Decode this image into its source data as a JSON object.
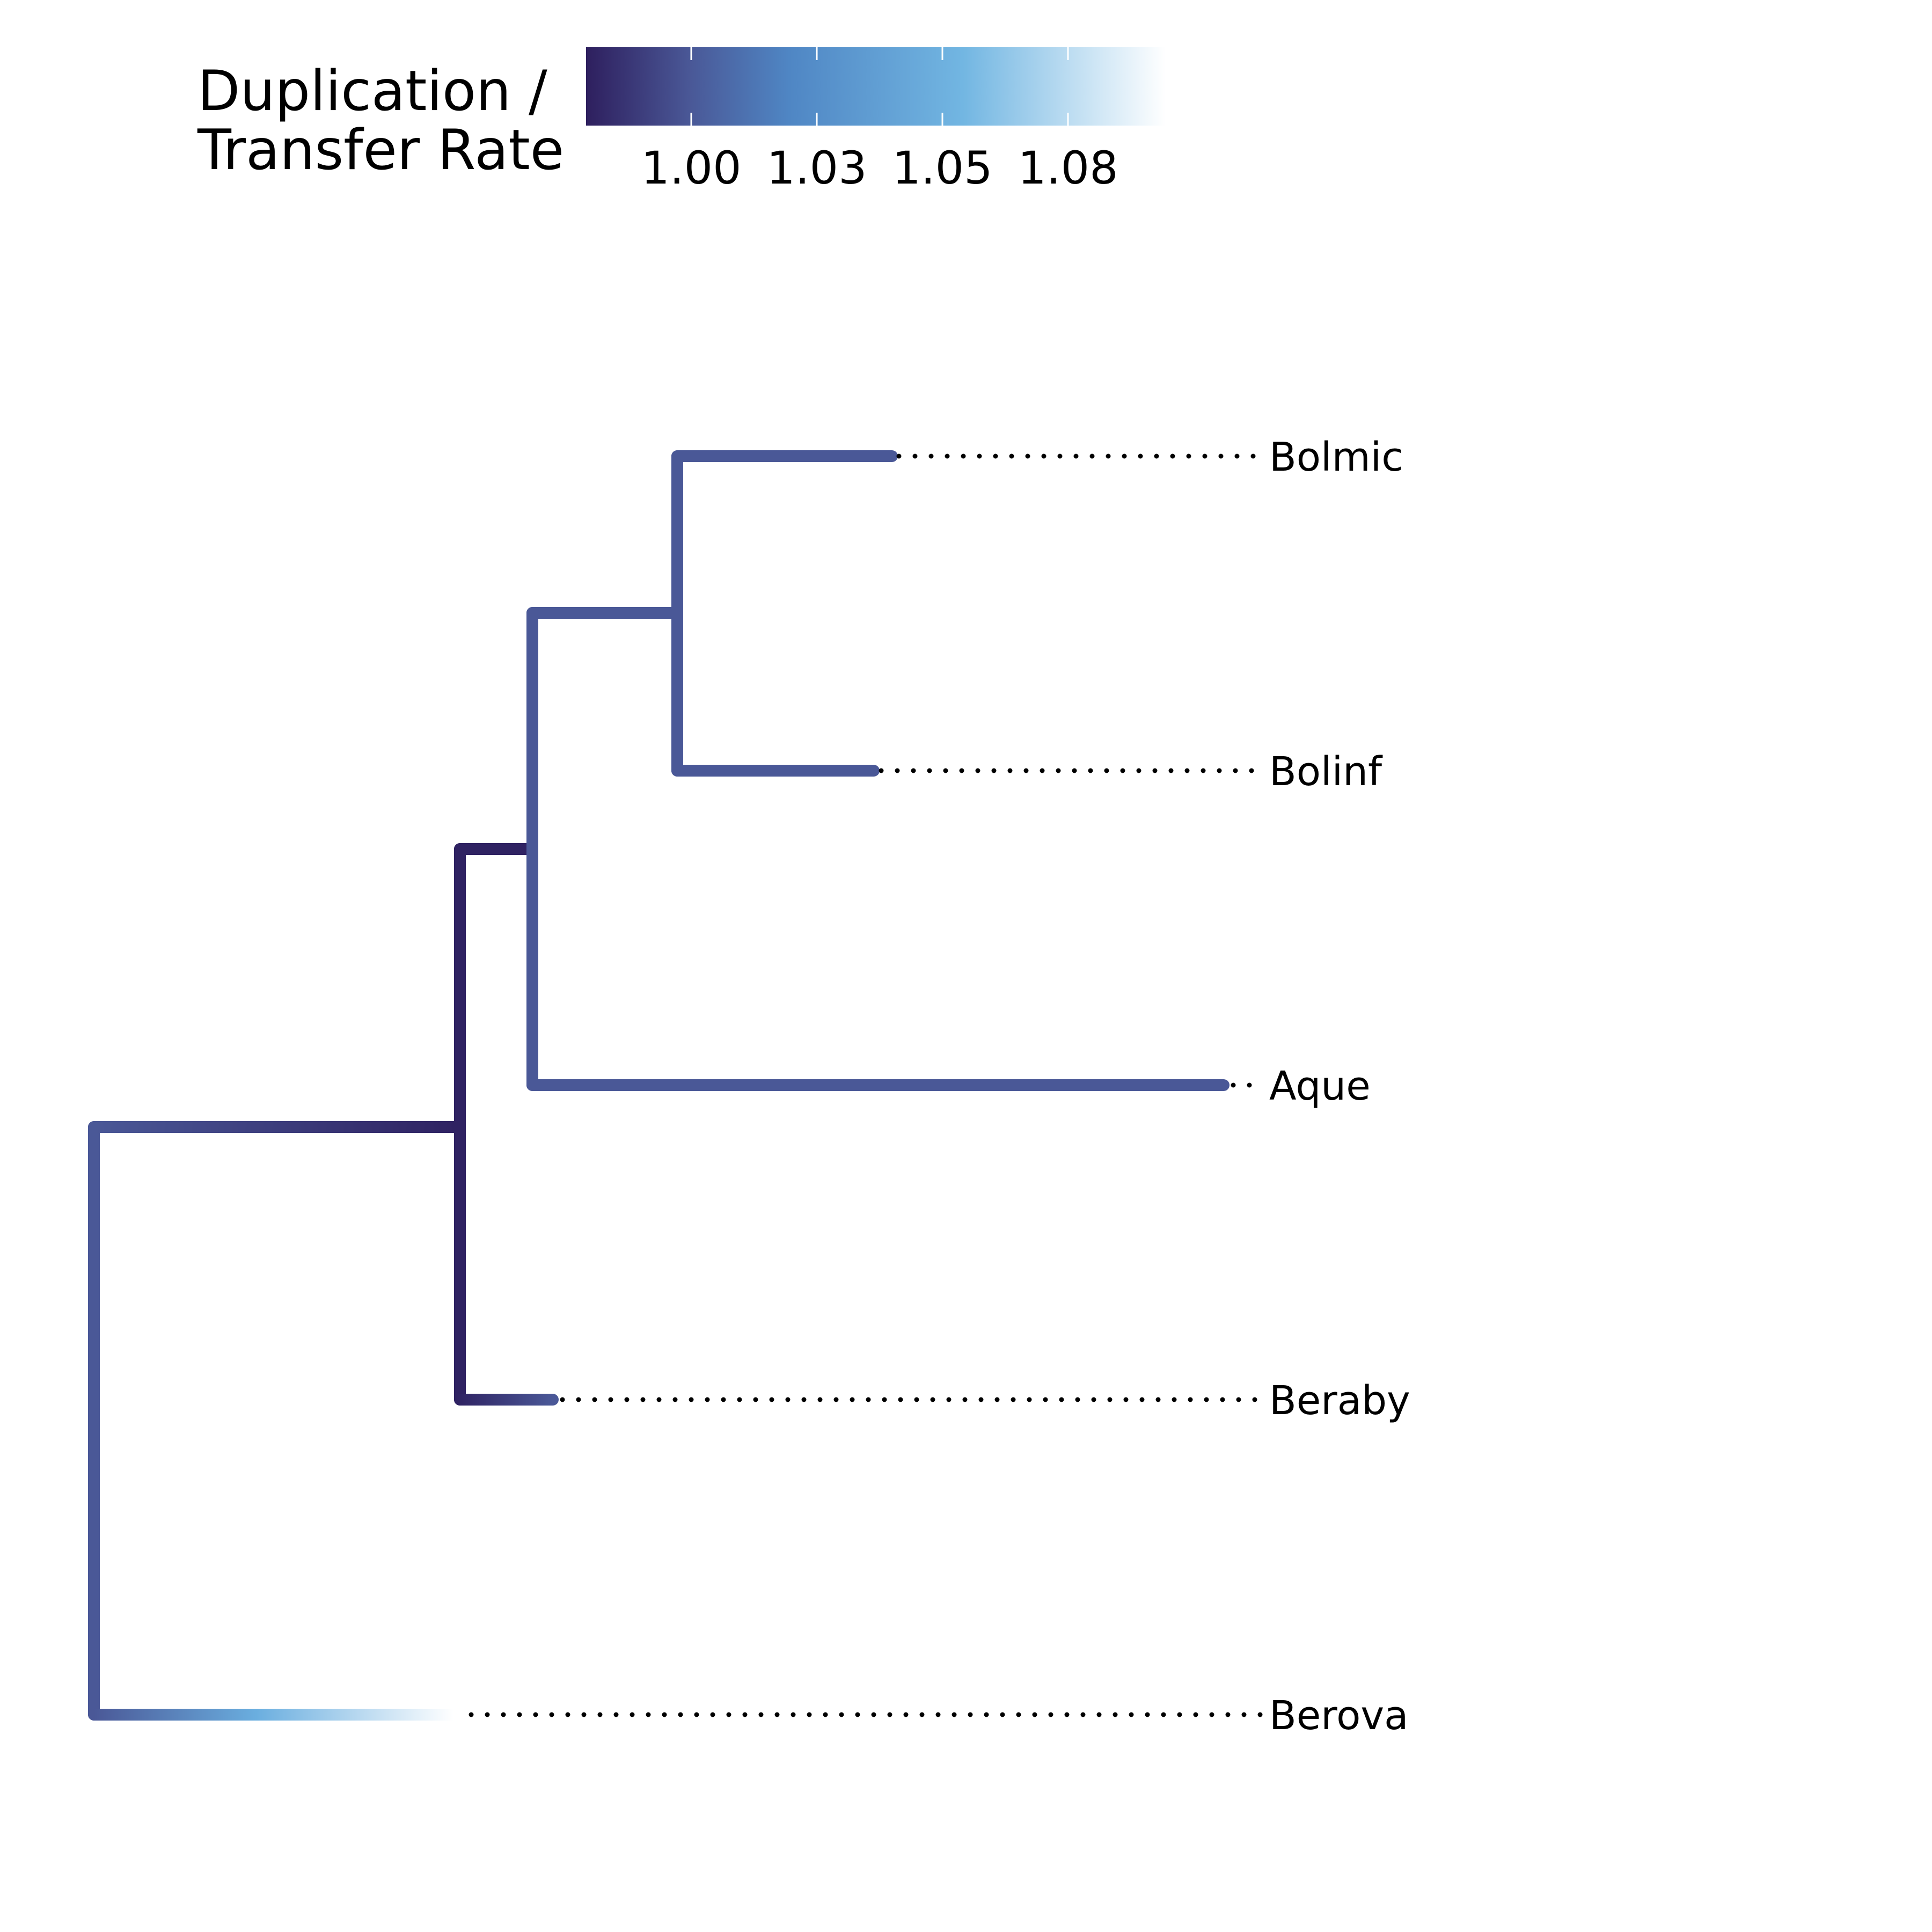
{
  "legend": {
    "title_line1": "Duplication /",
    "title_line2": "Transfer Rate",
    "ticks": [
      "1.00",
      "1.03",
      "1.05",
      "1.08"
    ],
    "gradient_colors": [
      "#2e1f5e",
      "#4b5fa6",
      "#5b93cf",
      "#72b6e2",
      "#ffffff"
    ]
  },
  "colors": {
    "branch": "#4a5897",
    "branch_dark": "#2f2262",
    "guide_line": "#000000"
  },
  "tips": [
    {
      "label": "Bolmic"
    },
    {
      "label": "Bolinf"
    },
    {
      "label": "Aque"
    },
    {
      "label": "Beraby"
    },
    {
      "label": "Berova"
    }
  ]
}
